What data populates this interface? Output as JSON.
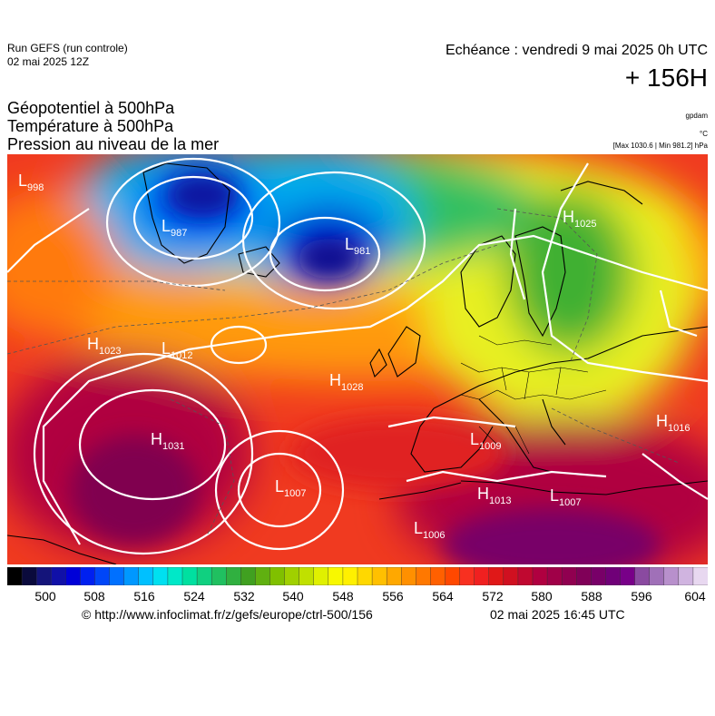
{
  "header": {
    "run_title": "Run GEFS (run controle)",
    "run_date": "02 mai 2025 12Z",
    "echeance": "Echéance : vendredi 9 mai 2025 0h UTC",
    "hour": "+ 156H"
  },
  "fields": {
    "line1": "Géopotentiel à 500hPa",
    "line2": "Température à 500hPa",
    "line3": "Pression au niveau de la mer",
    "unit_geo": "gpdam",
    "unit_temp": "°C",
    "unit_pressure": "[Max 1030.6 | Min 981.2] hPa"
  },
  "centers": [
    {
      "type": "L",
      "value": "998"
    },
    {
      "type": "L",
      "value": "987"
    },
    {
      "type": "L",
      "value": "981"
    },
    {
      "type": "H",
      "value": "1025"
    },
    {
      "type": "H",
      "value": "1023"
    },
    {
      "type": "L",
      "value": "1012"
    },
    {
      "type": "H",
      "value": "1028"
    },
    {
      "type": "H",
      "value": "1031"
    },
    {
      "type": "L",
      "value": "1007"
    },
    {
      "type": "H",
      "value": "1013"
    },
    {
      "type": "L",
      "value": "1007"
    },
    {
      "type": "L",
      "value": "1006"
    },
    {
      "type": "H",
      "value": "1016"
    },
    {
      "type": "L",
      "value": "1009"
    }
  ],
  "colorbar": {
    "labels": [
      "500",
      "508",
      "516",
      "524",
      "532",
      "540",
      "548",
      "556",
      "564",
      "572",
      "580",
      "588",
      "596",
      "604"
    ],
    "colors": [
      "#000000",
      "#0a0a3c",
      "#14147a",
      "#1010a8",
      "#0000d8",
      "#0020f0",
      "#0046f8",
      "#0070ff",
      "#0098ff",
      "#00c0ff",
      "#00e0f0",
      "#00e8c8",
      "#00e0a0",
      "#10d080",
      "#20c060",
      "#30b040",
      "#40a020",
      "#60b010",
      "#80c000",
      "#a0d000",
      "#c0e000",
      "#e0f000",
      "#f8f800",
      "#fff000",
      "#ffd800",
      "#ffc000",
      "#ffa800",
      "#ff9000",
      "#ff7800",
      "#ff6000",
      "#ff4800",
      "#f83020",
      "#f02020",
      "#e01818",
      "#d01020",
      "#c00830",
      "#b00040",
      "#a00048",
      "#900050",
      "#800058",
      "#780068",
      "#700078",
      "#780088",
      "#8a4aa0",
      "#a070b8",
      "#b890cc",
      "#d0b4e0",
      "#e8d8f0"
    ]
  },
  "footer": {
    "credit": "© http://www.infoclimat.fr/z/gefs/europe/ctrl-500/156",
    "stamp": "02 mai 2025 16:45 UTC"
  }
}
